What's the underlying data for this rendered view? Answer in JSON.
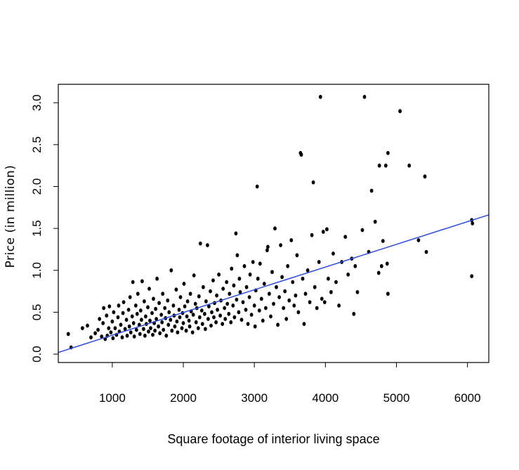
{
  "chart_data": {
    "type": "scatter",
    "title": "",
    "xlabel": "Square footage of interior living space",
    "ylabel": "Price (in million)",
    "xlim": [
      240,
      6300
    ],
    "ylim": [
      -0.1,
      3.22
    ],
    "xticks": [
      1000,
      2000,
      3000,
      4000,
      5000,
      6000
    ],
    "yticks": [
      0.0,
      0.5,
      1.0,
      1.5,
      2.0,
      2.5,
      3.0
    ],
    "xtick_labels": [
      "1000",
      "2000",
      "3000",
      "4000",
      "5000",
      "6000"
    ],
    "ytick_labels": [
      "0.0",
      "0.5",
      "1.0",
      "1.5",
      "2.0",
      "2.5",
      "3.0"
    ],
    "grid": false,
    "legend": "none",
    "point_color": "#000000",
    "line_color": "#2b4be0",
    "regression_line": {
      "slope": 0.000271,
      "intercept": -0.045
    },
    "series": [
      {
        "values": [
          [
            380,
            0.24
          ],
          [
            420,
            0.08
          ],
          [
            580,
            0.31
          ],
          [
            650,
            0.34
          ],
          [
            700,
            0.2
          ],
          [
            760,
            0.25
          ],
          [
            800,
            0.29
          ],
          [
            820,
            0.42
          ],
          [
            850,
            0.21
          ],
          [
            870,
            0.37
          ],
          [
            880,
            0.55
          ],
          [
            900,
            0.18
          ],
          [
            920,
            0.46
          ],
          [
            930,
            0.22
          ],
          [
            950,
            0.31
          ],
          [
            960,
            0.57
          ],
          [
            980,
            0.26
          ],
          [
            1000,
            0.39
          ],
          [
            1010,
            0.19
          ],
          [
            1020,
            0.5
          ],
          [
            1040,
            0.31
          ],
          [
            1060,
            0.23
          ],
          [
            1080,
            0.44
          ],
          [
            1090,
            0.58
          ],
          [
            1100,
            0.27
          ],
          [
            1120,
            0.35
          ],
          [
            1140,
            0.2
          ],
          [
            1150,
            0.49
          ],
          [
            1160,
            0.62
          ],
          [
            1180,
            0.3
          ],
          [
            1200,
            0.41
          ],
          [
            1210,
            0.22
          ],
          [
            1230,
            0.53
          ],
          [
            1240,
            0.33
          ],
          [
            1250,
            0.68
          ],
          [
            1260,
            0.26
          ],
          [
            1280,
            0.45
          ],
          [
            1290,
            0.86
          ],
          [
            1300,
            0.37
          ],
          [
            1310,
            0.21
          ],
          [
            1330,
            0.58
          ],
          [
            1340,
            0.29
          ],
          [
            1350,
            0.48
          ],
          [
            1360,
            0.72
          ],
          [
            1380,
            0.35
          ],
          [
            1390,
            0.24
          ],
          [
            1400,
            0.52
          ],
          [
            1410,
            0.41
          ],
          [
            1420,
            0.87
          ],
          [
            1440,
            0.3
          ],
          [
            1450,
            0.63
          ],
          [
            1460,
            0.22
          ],
          [
            1470,
            0.45
          ],
          [
            1480,
            0.36
          ],
          [
            1500,
            0.56
          ],
          [
            1510,
            0.27
          ],
          [
            1520,
            0.78
          ],
          [
            1530,
            0.4
          ],
          [
            1540,
            0.31
          ],
          [
            1560,
            0.49
          ],
          [
            1570,
            0.23
          ],
          [
            1580,
            0.66
          ],
          [
            1590,
            0.37
          ],
          [
            1600,
            0.28
          ],
          [
            1610,
            0.54
          ],
          [
            1620,
            0.42
          ],
          [
            1630,
            0.9
          ],
          [
            1650,
            0.33
          ],
          [
            1660,
            0.61
          ],
          [
            1670,
            0.25
          ],
          [
            1690,
            0.47
          ],
          [
            1700,
            0.38
          ],
          [
            1710,
            0.72
          ],
          [
            1720,
            0.29
          ],
          [
            1740,
            0.55
          ],
          [
            1750,
            0.43
          ],
          [
            1760,
            0.22
          ],
          [
            1780,
            0.64
          ],
          [
            1790,
            0.35
          ],
          [
            1800,
            0.5
          ],
          [
            1820,
            0.41
          ],
          [
            1830,
            1.0
          ],
          [
            1840,
            0.28
          ],
          [
            1860,
            0.58
          ],
          [
            1870,
            0.46
          ],
          [
            1880,
            0.33
          ],
          [
            1900,
            0.77
          ],
          [
            1910,
            0.39
          ],
          [
            1920,
            0.26
          ],
          [
            1940,
            0.53
          ],
          [
            1950,
            0.44
          ],
          [
            1960,
            0.68
          ],
          [
            1980,
            0.31
          ],
          [
            1990,
            0.49
          ],
          [
            2000,
            0.37
          ],
          [
            2010,
            0.84
          ],
          [
            2020,
            0.57
          ],
          [
            2040,
            0.28
          ],
          [
            2050,
            0.45
          ],
          [
            2060,
            0.63
          ],
          [
            2080,
            0.4
          ],
          [
            2090,
            0.33
          ],
          [
            2100,
            0.72
          ],
          [
            2110,
            0.51
          ],
          [
            2130,
            0.26
          ],
          [
            2140,
            0.47
          ],
          [
            2150,
            0.94
          ],
          [
            2170,
            0.6
          ],
          [
            2180,
            0.38
          ],
          [
            2190,
            0.55
          ],
          [
            2210,
            0.31
          ],
          [
            2220,
            0.69
          ],
          [
            2230,
            0.44
          ],
          [
            2240,
            1.32
          ],
          [
            2260,
            0.52
          ],
          [
            2270,
            0.36
          ],
          [
            2280,
            0.8
          ],
          [
            2300,
            0.48
          ],
          [
            2310,
            0.3
          ],
          [
            2320,
            0.63
          ],
          [
            2340,
            1.3
          ],
          [
            2350,
            0.42
          ],
          [
            2360,
            0.57
          ],
          [
            2380,
            0.75
          ],
          [
            2390,
            0.34
          ],
          [
            2400,
            0.5
          ],
          [
            2420,
            0.88
          ],
          [
            2430,
            0.44
          ],
          [
            2440,
            0.61
          ],
          [
            2460,
            0.38
          ],
          [
            2470,
            0.7
          ],
          [
            2480,
            0.53
          ],
          [
            2500,
            0.95
          ],
          [
            2520,
            0.46
          ],
          [
            2530,
            0.64
          ],
          [
            2550,
            0.36
          ],
          [
            2560,
            0.78
          ],
          [
            2580,
            0.55
          ],
          [
            2590,
            0.42
          ],
          [
            2610,
            0.86
          ],
          [
            2620,
            0.6
          ],
          [
            2640,
            0.48
          ],
          [
            2650,
            0.72
          ],
          [
            2670,
            0.38
          ],
          [
            2680,
            1.02
          ],
          [
            2700,
            0.58
          ],
          [
            2710,
            0.82
          ],
          [
            2720,
            0.44
          ],
          [
            2740,
            1.44
          ],
          [
            2750,
            0.65
          ],
          [
            2760,
            1.18
          ],
          [
            2780,
            0.5
          ],
          [
            2790,
            0.9
          ],
          [
            2800,
            0.74
          ],
          [
            2820,
            0.41
          ],
          [
            2840,
            0.62
          ],
          [
            2860,
            1.05
          ],
          [
            2880,
            0.53
          ],
          [
            2890,
            0.8
          ],
          [
            2910,
            0.36
          ],
          [
            2930,
            0.68
          ],
          [
            2940,
            0.95
          ],
          [
            2960,
            0.47
          ],
          [
            2980,
            1.1
          ],
          [
            3000,
            0.58
          ],
          [
            3010,
            0.33
          ],
          [
            3020,
            0.76
          ],
          [
            3040,
            2.0
          ],
          [
            3050,
            0.9
          ],
          [
            3070,
            0.52
          ],
          [
            3080,
            1.08
          ],
          [
            3100,
            0.66
          ],
          [
            3120,
            0.4
          ],
          [
            3140,
            0.84
          ],
          [
            3160,
            0.55
          ],
          [
            3180,
            1.24
          ],
          [
            3190,
            1.28
          ],
          [
            3210,
            0.72
          ],
          [
            3230,
            0.45
          ],
          [
            3250,
            0.98
          ],
          [
            3270,
            0.6
          ],
          [
            3290,
            1.5
          ],
          [
            3310,
            0.8
          ],
          [
            3330,
            0.35
          ],
          [
            3350,
            0.68
          ],
          [
            3370,
            1.3
          ],
          [
            3390,
            0.92
          ],
          [
            3410,
            0.55
          ],
          [
            3430,
            0.75
          ],
          [
            3450,
            0.42
          ],
          [
            3470,
            1.05
          ],
          [
            3490,
            0.64
          ],
          [
            3520,
            1.36
          ],
          [
            3540,
            0.86
          ],
          [
            3560,
            0.58
          ],
          [
            3580,
            0.7
          ],
          [
            3600,
            1.18
          ],
          [
            3620,
            0.5
          ],
          [
            3650,
            2.4
          ],
          [
            3660,
            2.38
          ],
          [
            3680,
            0.9
          ],
          [
            3700,
            0.36
          ],
          [
            3720,
            0.72
          ],
          [
            3750,
            1.0
          ],
          [
            3780,
            0.62
          ],
          [
            3810,
            1.42
          ],
          [
            3830,
            2.05
          ],
          [
            3850,
            0.8
          ],
          [
            3880,
            0.55
          ],
          [
            3910,
            1.1
          ],
          [
            3930,
            3.07
          ],
          [
            3950,
            0.66
          ],
          [
            3970,
            1.46
          ],
          [
            3990,
            0.62
          ],
          [
            4020,
            1.49
          ],
          [
            4040,
            0.9
          ],
          [
            4080,
            0.74
          ],
          [
            4110,
            1.2
          ],
          [
            4150,
            0.86
          ],
          [
            4190,
            0.58
          ],
          [
            4230,
            1.1
          ],
          [
            4280,
            1.4
          ],
          [
            4320,
            0.95
          ],
          [
            4370,
            1.14
          ],
          [
            4400,
            0.48
          ],
          [
            4420,
            1.05
          ],
          [
            4450,
            0.74
          ],
          [
            4520,
            1.48
          ],
          [
            4550,
            3.07
          ],
          [
            4610,
            1.22
          ],
          [
            4650,
            1.95
          ],
          [
            4700,
            1.58
          ],
          [
            4750,
            0.97
          ],
          [
            4760,
            2.25
          ],
          [
            4790,
            1.05
          ],
          [
            4810,
            1.35
          ],
          [
            4850,
            2.25
          ],
          [
            4870,
            1.08
          ],
          [
            4880,
            0.72
          ],
          [
            4880,
            2.4
          ],
          [
            5050,
            2.9
          ],
          [
            5180,
            2.25
          ],
          [
            5310,
            1.36
          ],
          [
            5400,
            2.12
          ],
          [
            5420,
            1.22
          ],
          [
            6060,
            1.6
          ],
          [
            6070,
            1.56
          ],
          [
            6060,
            0.93
          ]
        ]
      }
    ]
  }
}
